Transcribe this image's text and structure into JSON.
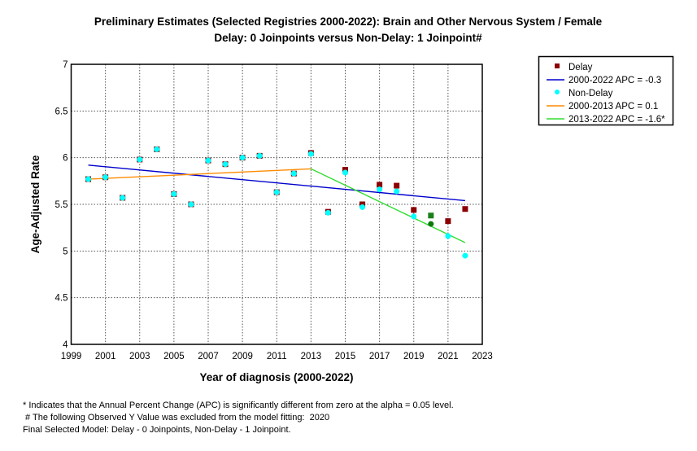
{
  "chart_data": {
    "type": "scatter",
    "title": "Preliminary Estimates (Selected Registries 2000-2022): Brain and Other Nervous System / Female",
    "subtitle": "Delay: 0 Joinpoints  versus  Non-Delay: 1 Joinpoint#",
    "xlabel": "Year of diagnosis (2000-2022)",
    "ylabel": "Age-Adjusted Rate",
    "xlim": [
      1999,
      2023
    ],
    "ylim": [
      4,
      7
    ],
    "xticks": [
      1999,
      2001,
      2003,
      2005,
      2007,
      2009,
      2011,
      2013,
      2015,
      2017,
      2019,
      2021,
      2023
    ],
    "yticks": [
      4,
      4.5,
      5,
      5.5,
      6,
      6.5,
      7
    ],
    "ytick_labels": [
      "4",
      "4.5",
      "5",
      "5.5",
      "6",
      "6.5",
      "7"
    ],
    "grid": true,
    "legend_position": "right",
    "excluded_year": 2020,
    "colors": {
      "delay": "#8b0000",
      "non_delay": "#00ffff",
      "excluded_delay": "#1a7f1a",
      "excluded_non_delay": "#0a7a0a",
      "delay_trend": "#0000cc",
      "non_delay_seg1": "#ff8c00",
      "non_delay_seg2": "#33dd33"
    },
    "series": [
      {
        "name": "Delay",
        "kind": "points",
        "marker": "square",
        "x": [
          2000,
          2001,
          2002,
          2003,
          2004,
          2005,
          2006,
          2007,
          2008,
          2009,
          2010,
          2011,
          2012,
          2013,
          2014,
          2015,
          2016,
          2017,
          2018,
          2019,
          2020,
          2021,
          2022
        ],
        "y": [
          5.77,
          5.79,
          5.57,
          5.98,
          6.09,
          5.61,
          5.5,
          5.97,
          5.93,
          6.0,
          6.02,
          5.63,
          5.83,
          6.05,
          5.42,
          5.87,
          5.5,
          5.71,
          5.7,
          5.44,
          5.38,
          5.32,
          5.45
        ]
      },
      {
        "name": "Non-Delay",
        "kind": "points",
        "marker": "circle",
        "x": [
          2000,
          2001,
          2002,
          2003,
          2004,
          2005,
          2006,
          2007,
          2008,
          2009,
          2010,
          2011,
          2012,
          2013,
          2014,
          2015,
          2016,
          2017,
          2018,
          2019,
          2020,
          2021,
          2022
        ],
        "y": [
          5.77,
          5.79,
          5.57,
          5.98,
          6.09,
          5.61,
          5.5,
          5.97,
          5.93,
          6.0,
          6.02,
          5.63,
          5.83,
          6.04,
          5.41,
          5.84,
          5.47,
          5.66,
          5.64,
          5.37,
          5.29,
          5.16,
          4.95
        ]
      },
      {
        "name": "2000-2022 APC  = -0.3",
        "kind": "line",
        "color_key": "delay_trend",
        "x": [
          2000,
          2022
        ],
        "y": [
          5.92,
          5.54
        ]
      },
      {
        "name": "2000-2013 APC  =  0.1",
        "kind": "line",
        "color_key": "non_delay_seg1",
        "x": [
          2000,
          2013
        ],
        "y": [
          5.77,
          5.88
        ]
      },
      {
        "name": "2013-2022 APC  = -1.6*",
        "kind": "line",
        "color_key": "non_delay_seg2",
        "x": [
          2013,
          2022
        ],
        "y": [
          5.88,
          5.09
        ]
      }
    ],
    "legend": [
      {
        "label": "Delay",
        "type": "square",
        "color_key": "delay"
      },
      {
        "label": "2000-2022 APC  = -0.3",
        "type": "line",
        "color_key": "delay_trend"
      },
      {
        "label": "Non-Delay",
        "type": "circle",
        "color_key": "non_delay"
      },
      {
        "label": "2000-2013 APC  =  0.1",
        "type": "line",
        "color_key": "non_delay_seg1"
      },
      {
        "label": "2013-2022 APC  = -1.6*",
        "type": "line",
        "color_key": "non_delay_seg2"
      }
    ]
  },
  "footnotes": [
    "* Indicates that the Annual Percent Change (APC) is significantly different from zero at the alpha = 0.05 level.",
    " # The following Observed Y Value was excluded from the model fitting:  2020",
    "Final Selected Model: Delay - 0 Joinpoints, Non-Delay - 1 Joinpoint."
  ]
}
